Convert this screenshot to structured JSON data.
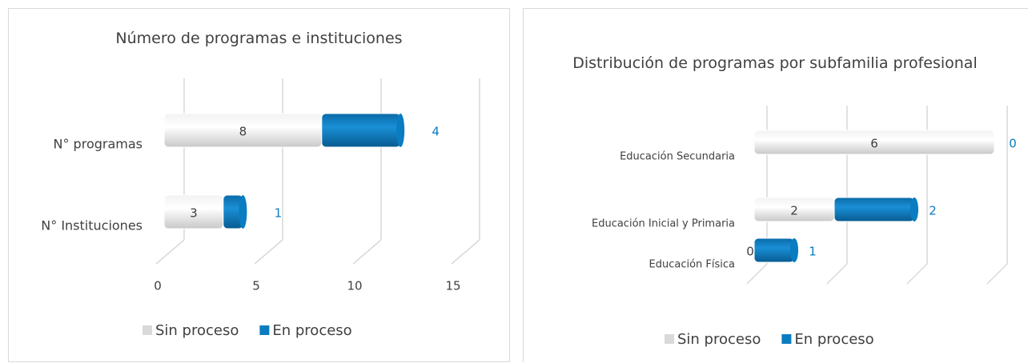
{
  "chart_data": [
    {
      "type": "bar",
      "title": "Número de programas e instituciones",
      "categories": [
        "N° programas",
        "N° Instituciones"
      ],
      "series": [
        {
          "name": "Sin proceso",
          "color": "#d9d9d9",
          "values": [
            8,
            3
          ]
        },
        {
          "name": "En proceso",
          "color": "#0a7cc1",
          "values": [
            4,
            1
          ]
        }
      ],
      "xlim": [
        0,
        15
      ],
      "xticks": [
        0,
        5,
        10,
        15
      ],
      "grid": true,
      "legend": "bottom"
    },
    {
      "type": "bar",
      "title": "Distribución de programas por subfamilia profesional",
      "categories": [
        "Educación Secundaria",
        "Educación Inicial y Primaria",
        "Educación Física"
      ],
      "series": [
        {
          "name": "Sin proceso",
          "color": "#d9d9d9",
          "values": [
            6,
            2,
            0
          ]
        },
        {
          "name": "En proceso",
          "color": "#0a7cc1",
          "values": [
            0,
            2,
            1
          ]
        }
      ],
      "xlim": [
        0,
        6
      ],
      "xticks": [
        0,
        2,
        4,
        6
      ],
      "grid": true,
      "legend": "bottom"
    }
  ]
}
